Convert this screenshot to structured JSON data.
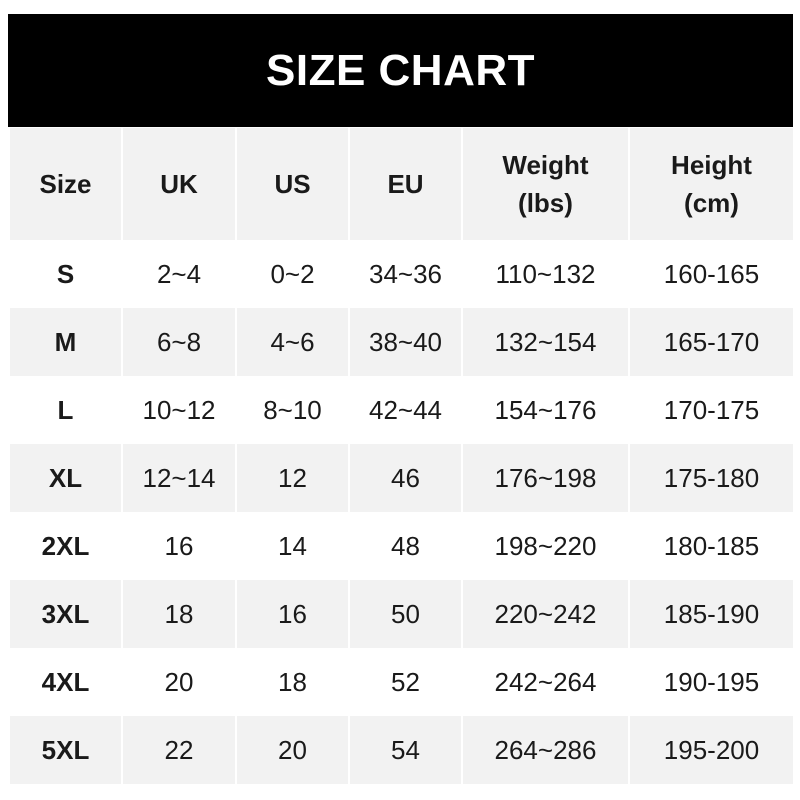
{
  "title": "SIZE CHART",
  "chart_data": {
    "type": "table",
    "title": "SIZE CHART",
    "columns": [
      {
        "line1": "Size",
        "line2": ""
      },
      {
        "line1": "UK",
        "line2": ""
      },
      {
        "line1": "US",
        "line2": ""
      },
      {
        "line1": "EU",
        "line2": ""
      },
      {
        "line1": "Weight",
        "line2": "(lbs)"
      },
      {
        "line1": "Height",
        "line2": "(cm)"
      }
    ],
    "rows": [
      [
        "S",
        "2~4",
        "0~2",
        "34~36",
        "110~132",
        "160-165"
      ],
      [
        "M",
        "6~8",
        "4~6",
        "38~40",
        "132~154",
        "165-170"
      ],
      [
        "L",
        "10~12",
        "8~10",
        "42~44",
        "154~176",
        "170-175"
      ],
      [
        "XL",
        "12~14",
        "12",
        "46",
        "176~198",
        "175-180"
      ],
      [
        "2XL",
        "16",
        "14",
        "48",
        "198~220",
        "180-185"
      ],
      [
        "3XL",
        "18",
        "16",
        "50",
        "220~242",
        "185-190"
      ],
      [
        "4XL",
        "20",
        "18",
        "52",
        "242~264",
        "190-195"
      ],
      [
        "5XL",
        "22",
        "20",
        "54",
        "264~286",
        "195-200"
      ]
    ],
    "colors": {
      "header_bg": "#000000",
      "stripe": "#f2f2f2",
      "background": "#ffffff"
    }
  }
}
